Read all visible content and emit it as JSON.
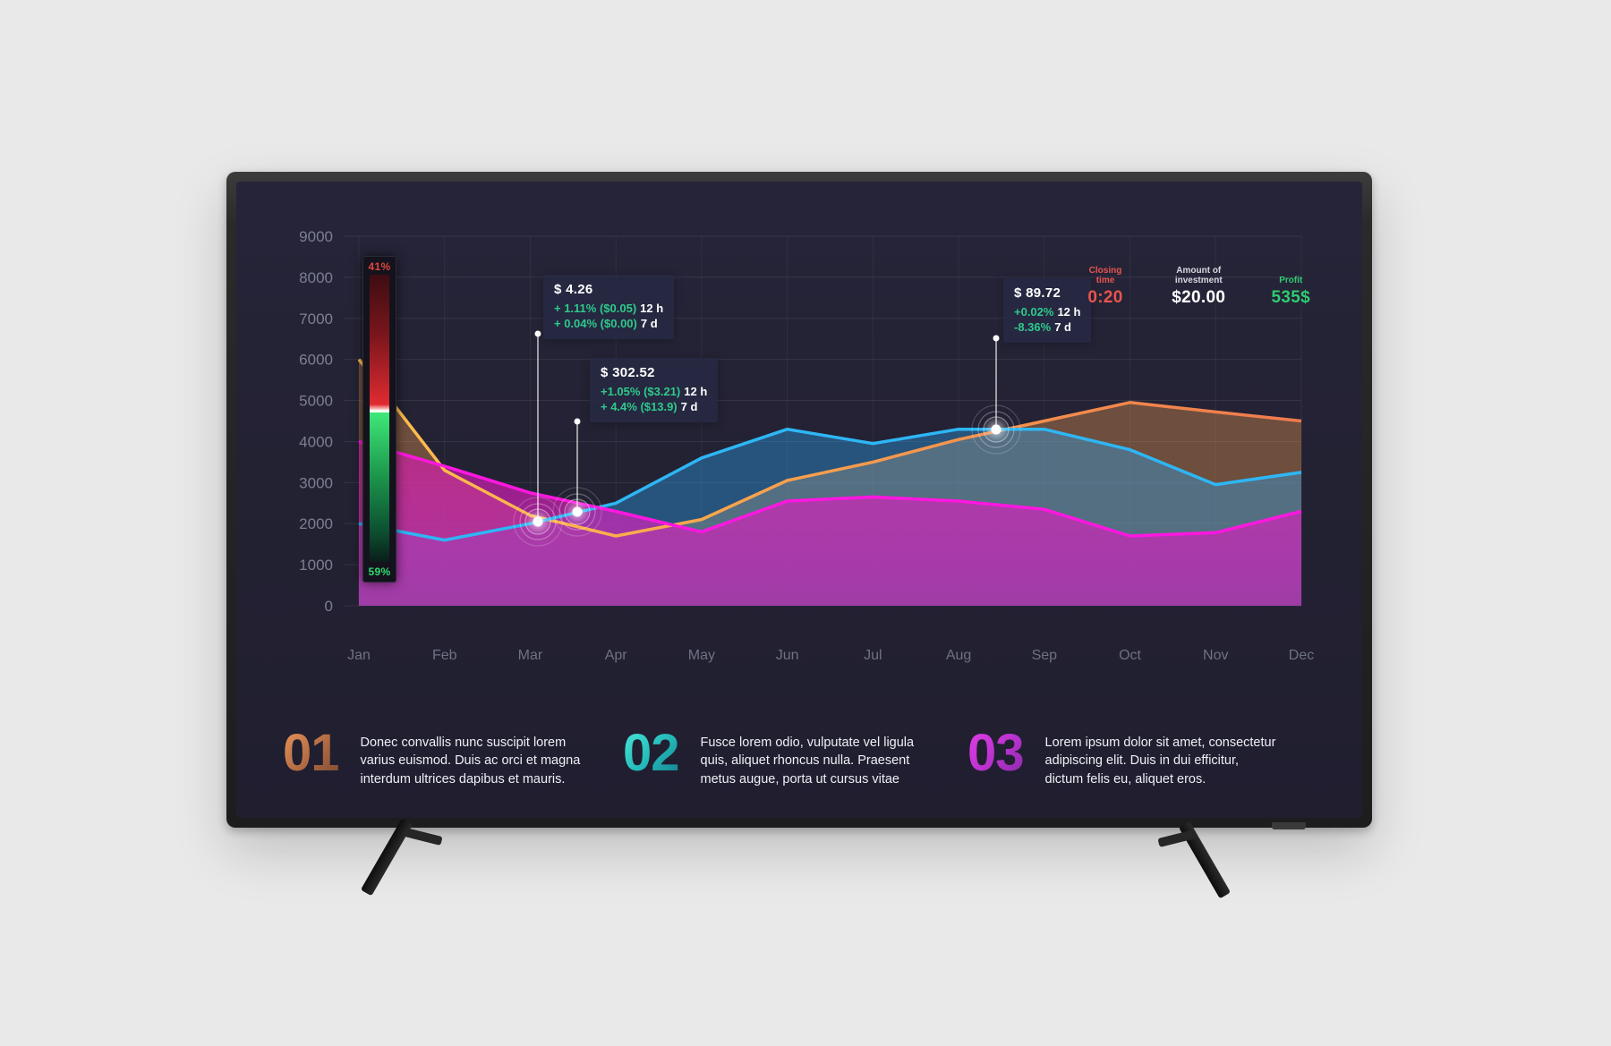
{
  "chart_data": {
    "type": "area",
    "categories": [
      "Jan",
      "Feb",
      "Mar",
      "Apr",
      "May",
      "Jun",
      "Jul",
      "Aug",
      "Sep",
      "Oct",
      "Nov",
      "Dec"
    ],
    "y_ticks": [
      0,
      1000,
      2000,
      3000,
      4000,
      5000,
      6000,
      7000,
      8000,
      9000
    ],
    "ylim": [
      0,
      9000
    ],
    "grid": true,
    "legend": false,
    "series": [
      {
        "name": "orange",
        "values": [
          6000,
          3300,
          2200,
          1700,
          2100,
          3050,
          3500,
          4050,
          4500,
          4950,
          4720,
          4500
        ]
      },
      {
        "name": "blue",
        "values": [
          2000,
          1600,
          2000,
          2500,
          3600,
          4300,
          3950,
          4300,
          4300,
          3800,
          2950,
          3250
        ]
      },
      {
        "name": "magenta",
        "values": [
          4000,
          3400,
          2750,
          2300,
          1800,
          2550,
          2650,
          2550,
          2350,
          1700,
          1780,
          2300
        ]
      }
    ]
  },
  "gauge": {
    "top_pct": "41%",
    "bottom_pct": "59%",
    "top_color": "#e0463e",
    "bottom_color": "#2edc6e"
  },
  "tooltips": [
    {
      "price": "$ 4.26",
      "line1": "+ 1.11% ($0.05)",
      "period1": "12 h",
      "line2": "+ 0.04% ($0.00)",
      "period2": "7 d"
    },
    {
      "price": "$ 302.52",
      "line1": "+1.05% ($3.21)",
      "period1": "12 h",
      "line2": "+ 4.4% ($13.9)",
      "period2": "7 d"
    },
    {
      "price": "$ 89.72",
      "line1": "+0.02%",
      "period1": "12 h",
      "line2": "-8.36%",
      "period2": "7 d"
    }
  ],
  "stats": [
    {
      "label": "Closing time",
      "value": "0:20",
      "color": "#e8554e"
    },
    {
      "label": "Amount of investment",
      "value": "$20.00",
      "color": "#ffffff"
    },
    {
      "label": "Profit",
      "value": "535$",
      "color": "#2ecc71"
    }
  ],
  "info_items": [
    {
      "number": "01",
      "text": "Donec convallis nunc suscipit lorem varius euismod. Duis ac orci et magna interdum ultrices dapibus et mauris."
    },
    {
      "number": "02",
      "text": "Fusce lorem odio, vulputate vel ligula quis, aliquet rhoncus nulla. Praesent metus augue, porta ut cursus vitae"
    },
    {
      "number": "03",
      "text": "Lorem ipsum dolor sit amet, consectetur adipiscing elit. Duis in dui efficitur, dictum felis eu, aliquet eros."
    }
  ],
  "colors": {
    "screen_bg": "#232233",
    "grid": "rgba(255,255,255,0.08)",
    "axis_text": "#7c7f92",
    "blue_line": "#2eb6f5",
    "orange_line_start": "#ffc04d",
    "orange_line_end": "#ef7a4d",
    "magenta_line": "#ff17e0",
    "tooltip_green": "#2fc98c"
  }
}
